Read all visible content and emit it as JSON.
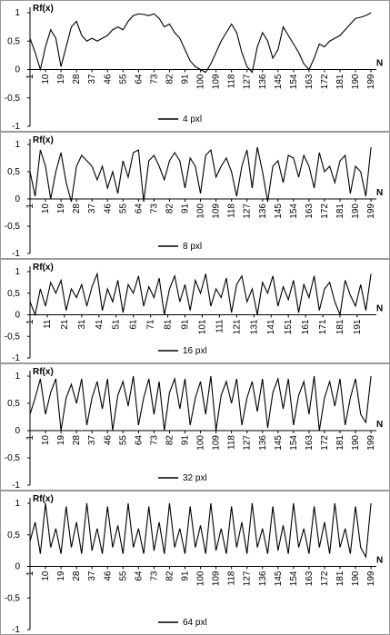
{
  "chart_data": [
    {
      "type": "line",
      "ylabel": "Rf(x)",
      "xlabel": "N",
      "xlim": [
        1,
        200
      ],
      "ylim": [
        -1,
        1
      ],
      "xticks": [
        1,
        10,
        19,
        28,
        37,
        46,
        55,
        64,
        73,
        82,
        91,
        100,
        109,
        118,
        127,
        136,
        145,
        154,
        163,
        172,
        181,
        190,
        199
      ],
      "yticks": [
        -1,
        {
          "value": -0.5,
          "label": "-0,5"
        },
        0,
        {
          "value": 0.5,
          "label": "0,5"
        },
        1
      ],
      "x": [
        1,
        4,
        7,
        10,
        13,
        16,
        19,
        22,
        25,
        28,
        31,
        34,
        37,
        40,
        43,
        46,
        49,
        52,
        55,
        58,
        61,
        64,
        67,
        70,
        73,
        76,
        79,
        82,
        85,
        88,
        91,
        94,
        97,
        100,
        103,
        106,
        109,
        112,
        115,
        118,
        121,
        124,
        127,
        130,
        133,
        136,
        139,
        142,
        145,
        148,
        151,
        154,
        157,
        160,
        163,
        166,
        169,
        172,
        175,
        178,
        181,
        184,
        187,
        190,
        193,
        196,
        199
      ],
      "series": [
        {
          "name": "4 pxl",
          "color": "#000000",
          "values": [
            0.55,
            0.3,
            0,
            0.4,
            0.7,
            0.55,
            0.05,
            0.4,
            0.75,
            0.85,
            0.6,
            0.5,
            0.55,
            0.5,
            0.55,
            0.6,
            0.7,
            0.75,
            0.7,
            0.85,
            0.95,
            0.98,
            0.97,
            0.95,
            0.98,
            0.9,
            0.75,
            0.8,
            0.65,
            0.55,
            0.35,
            0.15,
            0.05,
            0,
            -0.05,
            0.1,
            0.3,
            0.5,
            0.65,
            0.8,
            0.65,
            0.3,
            0.05,
            -0.05,
            0.4,
            0.65,
            0.5,
            0.2,
            0.35,
            0.75,
            0.6,
            0.45,
            0.3,
            0.1,
            0,
            0.2,
            0.45,
            0.4,
            0.5,
            0.55,
            0.6,
            0.7,
            0.8,
            0.9,
            0.92,
            0.95,
            1
          ]
        }
      ]
    },
    {
      "type": "line",
      "ylabel": "Rf(x)",
      "xlabel": "N",
      "xlim": [
        1,
        200
      ],
      "ylim": [
        -1,
        1
      ],
      "xticks": [
        1,
        10,
        19,
        28,
        37,
        46,
        55,
        64,
        73,
        82,
        91,
        100,
        109,
        118,
        127,
        136,
        145,
        154,
        163,
        172,
        181,
        190,
        199
      ],
      "yticks": [
        -1,
        {
          "value": -0.5,
          "label": "-0,5"
        },
        0,
        {
          "value": 0.5,
          "label": "0,5"
        },
        1
      ],
      "x": [
        1,
        4,
        7,
        10,
        13,
        16,
        19,
        22,
        25,
        28,
        31,
        34,
        37,
        40,
        43,
        46,
        49,
        52,
        55,
        58,
        61,
        64,
        67,
        70,
        73,
        76,
        79,
        82,
        85,
        88,
        91,
        94,
        97,
        100,
        103,
        106,
        109,
        112,
        115,
        118,
        121,
        124,
        127,
        130,
        133,
        136,
        139,
        142,
        145,
        148,
        151,
        154,
        157,
        160,
        163,
        166,
        169,
        172,
        175,
        178,
        181,
        184,
        187,
        190,
        193,
        196,
        199
      ],
      "series": [
        {
          "name": "8 pxl",
          "color": "#000000",
          "values": [
            0.5,
            0.05,
            0.9,
            0.6,
            0,
            0.5,
            0.85,
            0.3,
            -0.05,
            0.6,
            0.8,
            0.7,
            0.6,
            0.35,
            0.6,
            0.2,
            0.5,
            0.1,
            0.7,
            0.4,
            0.85,
            0.9,
            -0.05,
            0.7,
            0.8,
            0.6,
            0.35,
            0.7,
            0.85,
            0.7,
            0.2,
            0.75,
            0.6,
            0.1,
            0.8,
            0.9,
            0.4,
            0.6,
            0.75,
            0.5,
            0.05,
            0.6,
            0.9,
            0.2,
            0.95,
            0.5,
            -0.05,
            0.6,
            0.7,
            0.3,
            0.8,
            0.75,
            0.4,
            0.8,
            0.6,
            0.2,
            0.85,
            0.5,
            0.6,
            0.3,
            0.7,
            0.8,
            0.1,
            0.6,
            0.5,
            0.05,
            0.95
          ]
        }
      ]
    },
    {
      "type": "line",
      "ylabel": "Rf(x)",
      "xlabel": "N",
      "xlim": [
        1,
        200
      ],
      "ylim": [
        -1,
        1
      ],
      "xticks": [
        1,
        11,
        21,
        31,
        41,
        51,
        61,
        71,
        81,
        91,
        101,
        111,
        121,
        131,
        141,
        151,
        161,
        171,
        181,
        191
      ],
      "yticks": [
        -1,
        {
          "value": -0.5,
          "label": "-0,5"
        },
        0,
        {
          "value": 0.5,
          "label": "0,5"
        },
        1
      ],
      "x": [
        1,
        4,
        7,
        10,
        13,
        16,
        19,
        22,
        25,
        28,
        31,
        34,
        37,
        40,
        43,
        46,
        49,
        52,
        55,
        58,
        61,
        64,
        67,
        70,
        73,
        76,
        79,
        82,
        85,
        88,
        91,
        94,
        97,
        100,
        103,
        106,
        109,
        112,
        115,
        118,
        121,
        124,
        127,
        130,
        133,
        136,
        139,
        142,
        145,
        148,
        151,
        154,
        157,
        160,
        163,
        166,
        169,
        172,
        175,
        178,
        181,
        184,
        187,
        190,
        193,
        196,
        199
      ],
      "series": [
        {
          "name": "16 pxl",
          "color": "#000000",
          "values": [
            0.3,
            0,
            0.6,
            0.2,
            0.75,
            0.5,
            0.8,
            0.1,
            0.6,
            0.4,
            0.7,
            0.2,
            0.65,
            0.95,
            0.1,
            0.6,
            0.3,
            0.8,
            0.05,
            0.7,
            0.5,
            0.9,
            0.2,
            0.65,
            0.4,
            0.85,
            0,
            0.6,
            0.9,
            0.3,
            0.7,
            0.1,
            0.8,
            0.5,
            0.95,
            0.2,
            0.6,
            0.4,
            0.85,
            0.05,
            0.7,
            0.9,
            0.3,
            0.6,
            0,
            0.75,
            0.5,
            0.9,
            0.2,
            0.65,
            0.35,
            0.8,
            0.05,
            0.7,
            0.4,
            0.9,
            0.1,
            0.6,
            0.75,
            0.3,
            0,
            0.8,
            0.45,
            0.2,
            0.7,
            0.1,
            0.95
          ]
        }
      ]
    },
    {
      "type": "line",
      "ylabel": "Rf(x)",
      "xlabel": "N",
      "xlim": [
        1,
        200
      ],
      "ylim": [
        -1,
        1
      ],
      "xticks": [
        1,
        10,
        19,
        28,
        37,
        46,
        55,
        64,
        73,
        82,
        91,
        100,
        109,
        118,
        127,
        136,
        145,
        154,
        163,
        172,
        181,
        190,
        199
      ],
      "yticks": [
        -1,
        {
          "value": -0.5,
          "label": "-0,5"
        },
        0,
        {
          "value": 0.5,
          "label": "0,5"
        },
        1
      ],
      "x": [
        1,
        4,
        7,
        10,
        13,
        16,
        19,
        22,
        25,
        28,
        31,
        34,
        37,
        40,
        43,
        46,
        49,
        52,
        55,
        58,
        61,
        64,
        67,
        70,
        73,
        76,
        79,
        82,
        85,
        88,
        91,
        94,
        97,
        100,
        103,
        106,
        109,
        112,
        115,
        118,
        121,
        124,
        127,
        130,
        133,
        136,
        139,
        142,
        145,
        148,
        151,
        154,
        157,
        160,
        163,
        166,
        169,
        172,
        175,
        178,
        181,
        184,
        187,
        190,
        193,
        196,
        199
      ],
      "series": [
        {
          "name": "32 pxl",
          "color": "#000000",
          "values": [
            0.3,
            0.6,
            0.95,
            0.3,
            0.7,
            0.95,
            0,
            0.6,
            0.85,
            0.5,
            0.95,
            0.1,
            0.6,
            0.9,
            0.4,
            0.95,
            0,
            0.65,
            0.9,
            0.45,
            1,
            0.1,
            0.6,
            0.95,
            0.3,
            0.9,
            0,
            0.7,
            0.95,
            0.4,
            0.95,
            0.1,
            0.6,
            0.9,
            0.3,
            1,
            0,
            0.65,
            0.9,
            0.5,
            0.95,
            0.1,
            0.6,
            0.9,
            0.35,
            0.95,
            0.05,
            0.7,
            0.95,
            0.4,
            0.95,
            0.1,
            0.65,
            0.9,
            0.3,
            1,
            0,
            0.6,
            0.9,
            0.45,
            0.95,
            0.1,
            0.6,
            0.95,
            0.3,
            0.15,
            1
          ]
        }
      ]
    },
    {
      "type": "line",
      "ylabel": "Rf(x)",
      "xlabel": "N",
      "xlim": [
        1,
        200
      ],
      "ylim": [
        -1,
        1
      ],
      "xticks": [
        1,
        10,
        19,
        28,
        37,
        46,
        55,
        64,
        73,
        82,
        91,
        100,
        109,
        118,
        127,
        136,
        145,
        154,
        163,
        172,
        181,
        190,
        199
      ],
      "yticks": [
        -1,
        {
          "value": -0.5,
          "label": "-0,5"
        },
        0,
        {
          "value": 0.5,
          "label": "0,5"
        },
        1
      ],
      "x": [
        1,
        4,
        7,
        10,
        13,
        16,
        19,
        22,
        25,
        28,
        31,
        34,
        37,
        40,
        43,
        46,
        49,
        52,
        55,
        58,
        61,
        64,
        67,
        70,
        73,
        76,
        79,
        82,
        85,
        88,
        91,
        94,
        97,
        100,
        103,
        106,
        109,
        112,
        115,
        118,
        121,
        124,
        127,
        130,
        133,
        136,
        139,
        142,
        145,
        148,
        151,
        154,
        157,
        160,
        163,
        166,
        169,
        172,
        175,
        178,
        181,
        184,
        187,
        190,
        193,
        196,
        199
      ],
      "series": [
        {
          "name": "64 pxl",
          "color": "#000000",
          "values": [
            0.4,
            0.7,
            0.2,
            1,
            0.3,
            0.6,
            0.2,
            0.95,
            0.3,
            0.7,
            0.2,
            1,
            0.25,
            0.6,
            0.2,
            0.95,
            0.3,
            0.65,
            0.2,
            1,
            0.3,
            0.6,
            0.2,
            0.95,
            0.25,
            0.7,
            0.2,
            1,
            0.3,
            0.6,
            0.2,
            0.95,
            0.3,
            0.65,
            0.2,
            1,
            0.25,
            0.6,
            0.2,
            0.95,
            0.3,
            0.7,
            0.2,
            1,
            0.3,
            0.6,
            0.2,
            0.95,
            0.25,
            0.65,
            0.2,
            1,
            0.3,
            0.6,
            0.2,
            0.95,
            0.3,
            0.7,
            0.2,
            1,
            0.3,
            0.6,
            0.2,
            0.95,
            0.3,
            0.15,
            1
          ]
        }
      ]
    }
  ]
}
